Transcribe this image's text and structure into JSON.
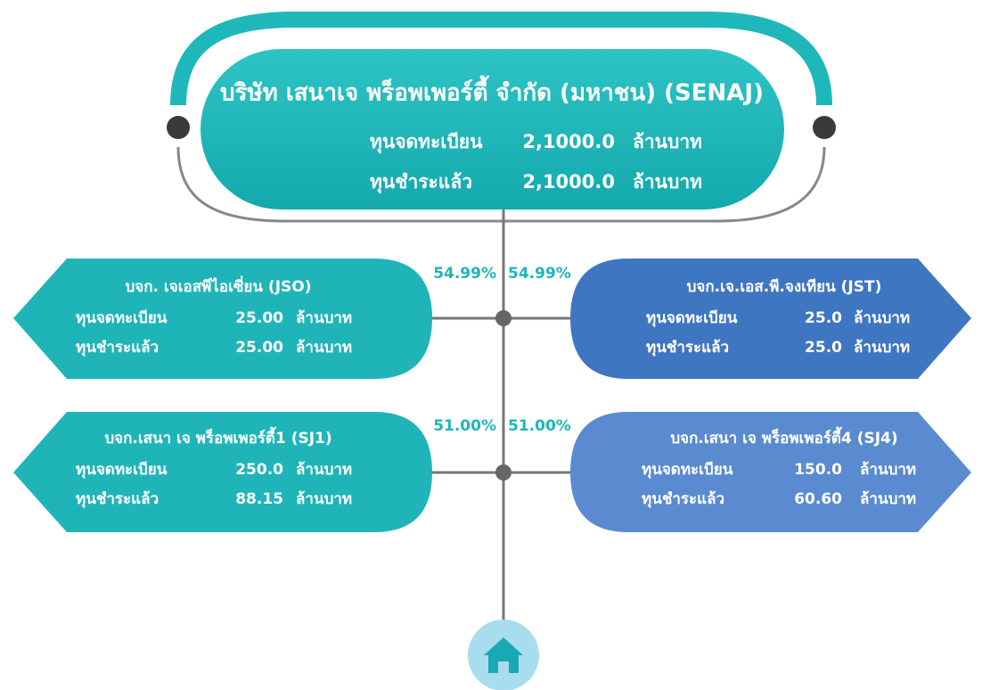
{
  "parent": {
    "title": "บริษัท เสนาเจ พร็อพเพอร์ตี้ จำกัด (มหาชน) (SENAJ)",
    "rows": [
      {
        "label": "ทุนจดทะเบียน",
        "value": "2,1000.0",
        "unit": "ล้านบาท"
      },
      {
        "label": "ทุนชำระแล้ว",
        "value": "2,1000.0",
        "unit": "ล้านบาท"
      }
    ]
  },
  "subsidiaries": [
    {
      "name": "บจก. เจเอสพีไอเซี่ยน (JSO)",
      "percent": "54.99%",
      "rows": [
        {
          "label": "ทุนจดทะเบียน",
          "value": "25.00",
          "unit": "ล้านบาท"
        },
        {
          "label": "ทุนชำระแล้ว",
          "value": "25.00",
          "unit": "ล้านบาท"
        }
      ]
    },
    {
      "name": "บจก.เจ.เอส.พี.จงเทียน (JST)",
      "percent": "54.99%",
      "rows": [
        {
          "label": "ทุนจดทะเบียน",
          "value": "25.0",
          "unit": "ล้านบาท"
        },
        {
          "label": "ทุนชำระแล้ว",
          "value": "25.0",
          "unit": "ล้านบาท"
        }
      ]
    },
    {
      "name": "บจก.เสนา เจ พร็อพเพอร์ตี้1 (SJ1)",
      "percent": "51.00%",
      "rows": [
        {
          "label": "ทุนจดทะเบียน",
          "value": "250.0",
          "unit": "ล้านบาท"
        },
        {
          "label": "ทุนชำระแล้ว",
          "value": "88.15",
          "unit": "ล้านบาท"
        }
      ]
    },
    {
      "name": "บจก.เสนา เจ พร็อพเพอร์ตี้4 (SJ4)",
      "percent": "51.00%",
      "rows": [
        {
          "label": "ทุนจดทะเบียน",
          "value": "150.0",
          "unit": "ล้านบาท"
        },
        {
          "label": "ทุนชำระแล้ว",
          "value": "60.60",
          "unit": "ล้านบาท"
        }
      ]
    }
  ]
}
